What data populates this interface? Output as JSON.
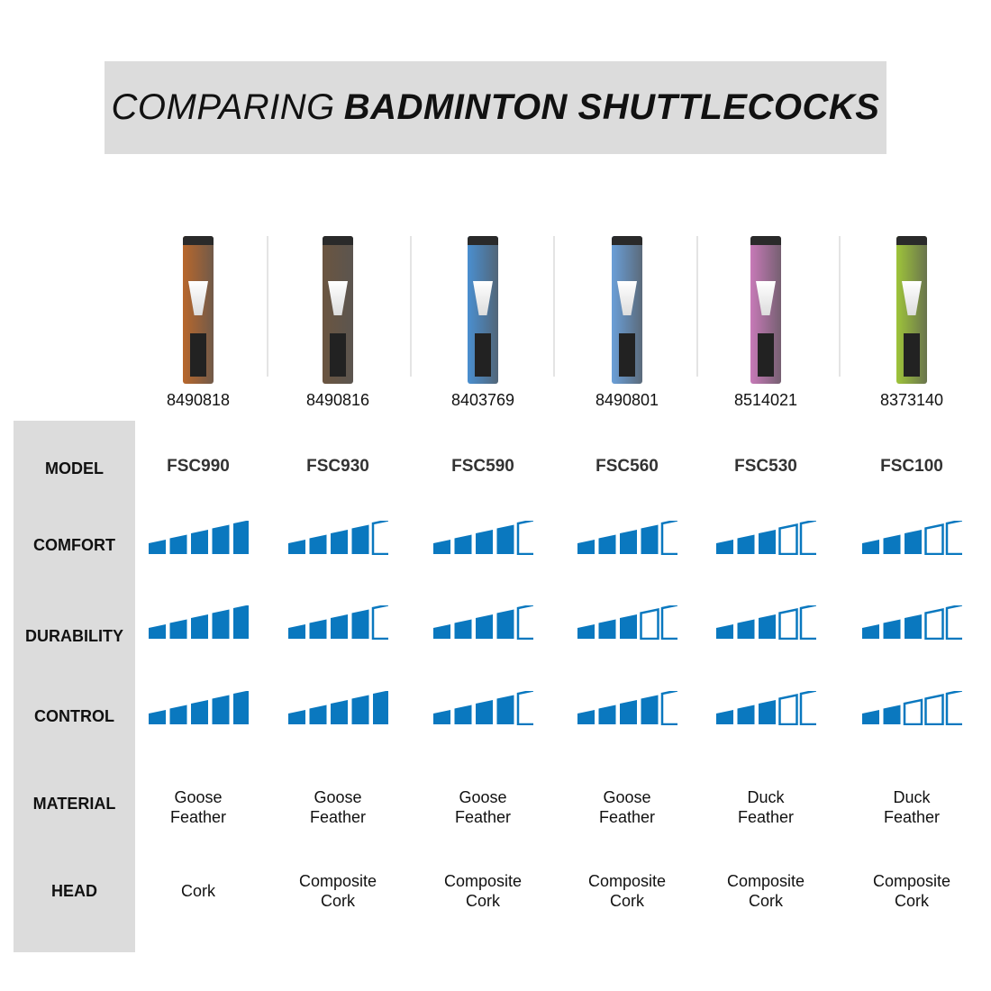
{
  "title": {
    "light": "COMPARING",
    "bold": "BADMINTON SHUTTLECOCKS"
  },
  "row_labels": {
    "model": "MODEL",
    "comfort": "COMFORT",
    "durability": "DURABILITY",
    "control": "CONTROL",
    "material": "MATERIAL",
    "head": "HEAD"
  },
  "rating_max": 5,
  "colors": {
    "rating": "#0a78bf",
    "label_bg": "#dcdcdc"
  },
  "products": [
    {
      "sku": "8490818",
      "model": "FSC990",
      "comfort": 5,
      "durability": 5,
      "control": 5,
      "material": [
        "Goose",
        "Feather"
      ],
      "head": [
        "Cork"
      ],
      "tube_color": "#b8672c"
    },
    {
      "sku": "8490816",
      "model": "FSC930",
      "comfort": 4,
      "durability": 4,
      "control": 5,
      "material": [
        "Goose",
        "Feather"
      ],
      "head": [
        "Composite",
        "Cork"
      ],
      "tube_color": "#6b5540"
    },
    {
      "sku": "8403769",
      "model": "FSC590",
      "comfort": 4,
      "durability": 4,
      "control": 4,
      "material": [
        "Goose",
        "Feather"
      ],
      "head": [
        "Composite",
        "Cork"
      ],
      "tube_color": "#4a8fd0"
    },
    {
      "sku": "8490801",
      "model": "FSC560",
      "comfort": 4,
      "durability": 3,
      "control": 4,
      "material": [
        "Goose",
        "Feather"
      ],
      "head": [
        "Composite",
        "Cork"
      ],
      "tube_color": "#6a9fd8"
    },
    {
      "sku": "8514021",
      "model": "FSC530",
      "comfort": 3,
      "durability": 3,
      "control": 3,
      "material": [
        "Duck",
        "Feather"
      ],
      "head": [
        "Composite",
        "Cork"
      ],
      "tube_color": "#c77ab8"
    },
    {
      "sku": "8373140",
      "model": "FSC100",
      "comfort": 3,
      "durability": 3,
      "control": 2,
      "material": [
        "Duck",
        "Feather"
      ],
      "head": [
        "Composite",
        "Cork"
      ],
      "tube_color": "#9ec43a"
    }
  ]
}
